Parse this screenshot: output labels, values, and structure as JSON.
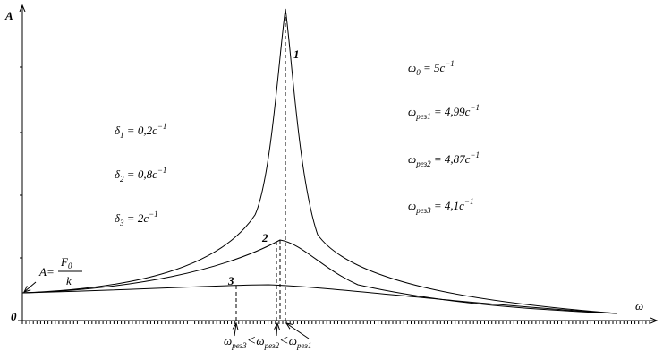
{
  "axes": {
    "y_label": "A",
    "x_label": "ω",
    "origin": "0"
  },
  "static_amplitude": {
    "lhs": "A",
    "eq": "=",
    "numerator": "F",
    "numerator_sub": "0",
    "denominator": "k"
  },
  "curve_labels": [
    "1",
    "2",
    "3"
  ],
  "damping": [
    {
      "symbol": "δ",
      "sub": "1",
      "value": " = 0,2c",
      "exp": "−1"
    },
    {
      "symbol": "δ",
      "sub": "2",
      "value": " = 0,8c",
      "exp": "−1"
    },
    {
      "symbol": "δ",
      "sub": "3",
      "value": " = 2c",
      "exp": "−1"
    }
  ],
  "frequencies": [
    {
      "symbol": "ω",
      "sub": "0",
      "value": " = 5c",
      "exp": "−1"
    },
    {
      "symbol": "ω",
      "sub": "рез1",
      "value": " = 4,99c",
      "exp": "−1"
    },
    {
      "symbol": "ω",
      "sub": "рез2",
      "value": " = 4,87c",
      "exp": "−1"
    },
    {
      "symbol": "ω",
      "sub": "рез3",
      "value": " = 4,1c",
      "exp": "−1"
    }
  ],
  "resonance_order": {
    "symbol": "ω",
    "subs": [
      "рез3",
      "рез2",
      "рез1"
    ],
    "separator": "<"
  }
}
